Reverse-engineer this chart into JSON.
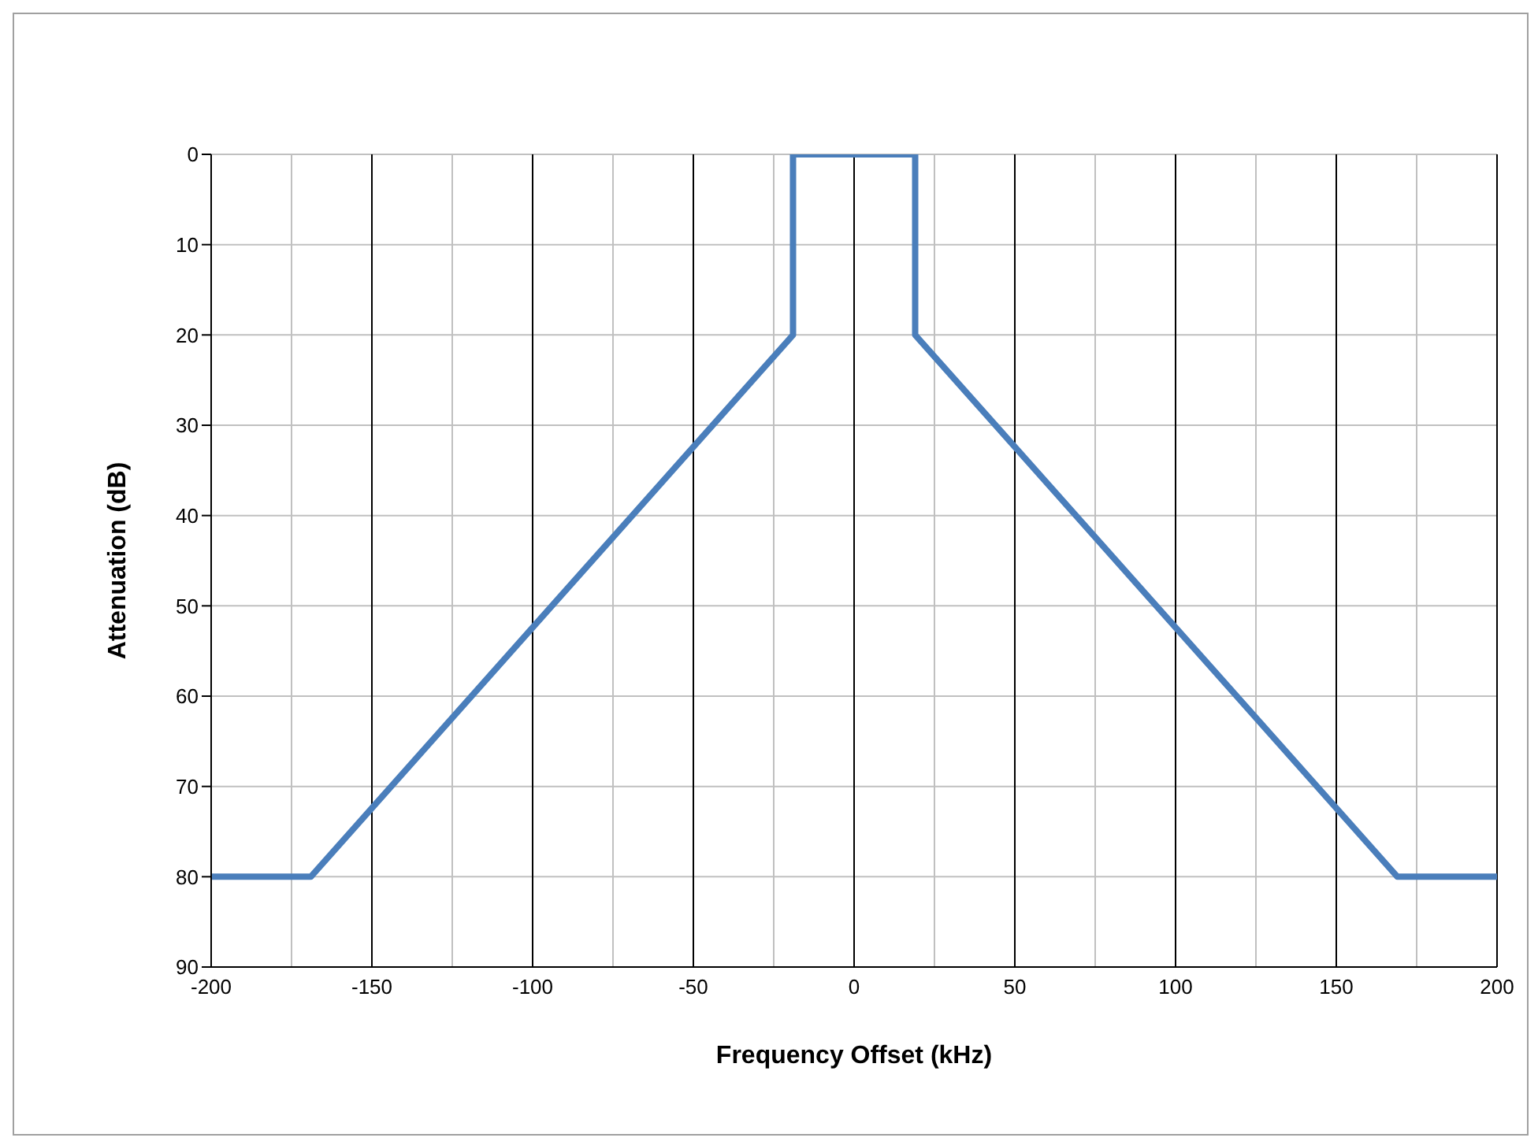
{
  "chart_data": {
    "type": "line",
    "xlabel": "Frequency Offset (kHz)",
    "ylabel": "Attenuation (dB)",
    "x": [
      -200,
      -169,
      -19,
      -19,
      19,
      19,
      169,
      200
    ],
    "series": [
      {
        "color": "#4a7ebb",
        "values": [
          80,
          80,
          20,
          0,
          0,
          20,
          80,
          80
        ]
      }
    ],
    "xlim": [
      -200,
      200
    ],
    "xticks": [
      -200,
      {
        "value": -175,
        "label": null
      },
      -150,
      {
        "value": -125,
        "label": null
      },
      -100,
      {
        "value": -75,
        "label": null
      },
      -50,
      {
        "value": -25,
        "label": null
      },
      0,
      {
        "value": 25,
        "label": null
      },
      50,
      {
        "value": 75,
        "label": null
      },
      100,
      {
        "value": 125,
        "label": null
      },
      150,
      {
        "value": 175,
        "label": null
      },
      200
    ],
    "ylim": [
      90,
      0
    ],
    "yticks": [
      0,
      10,
      20,
      30,
      40,
      50,
      60,
      70,
      80,
      90
    ],
    "grid": true,
    "marker": "none",
    "line_style": "solid"
  }
}
